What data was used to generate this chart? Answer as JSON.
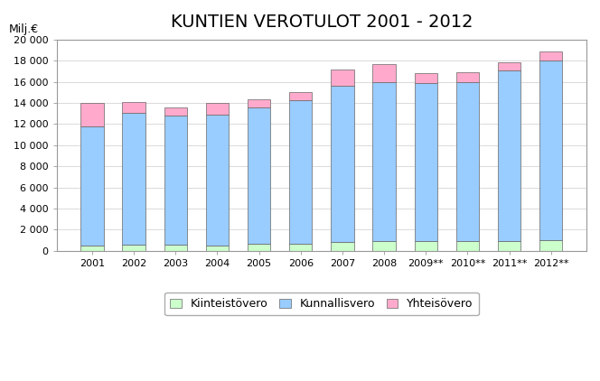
{
  "title": "KUNTIEN VEROTULOT 2001 - 2012",
  "ylabel": "Milj.€",
  "categories": [
    "2001",
    "2002",
    "2003",
    "2004",
    "2005",
    "2006",
    "2007",
    "2008",
    "2009**",
    "2010**",
    "2011**",
    "2012**"
  ],
  "kiinteistovero": [
    500,
    550,
    550,
    500,
    650,
    700,
    800,
    900,
    900,
    900,
    950,
    1000
  ],
  "kunnallisvero": [
    11300,
    12500,
    12300,
    12400,
    12900,
    13600,
    14800,
    15100,
    15000,
    15100,
    16100,
    17000
  ],
  "yhteisovero": [
    2200,
    1000,
    700,
    1100,
    800,
    700,
    1600,
    1700,
    900,
    900,
    800,
    900
  ],
  "color_kiinteistovero": "#ccffcc",
  "color_kunnallisvero": "#99ccff",
  "color_yhteisovero": "#ffaacc",
  "legend_labels": [
    "Kiinteistövero",
    "Kunnallisvero",
    "Yhteisövero"
  ],
  "ylim": [
    0,
    20000
  ],
  "yticks": [
    0,
    2000,
    4000,
    6000,
    8000,
    10000,
    12000,
    14000,
    16000,
    18000,
    20000
  ],
  "background_color": "#ffffff",
  "plot_background": "#ffffff",
  "title_fontsize": 14,
  "axis_label_fontsize": 9,
  "tick_fontsize": 8,
  "bar_width": 0.55,
  "bar_edgecolor": "#666666",
  "bar_linewidth": 0.5
}
